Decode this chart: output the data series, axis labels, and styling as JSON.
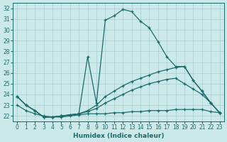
{
  "xlabel": "Humidex (Indice chaleur)",
  "bg_color": "#cce9e9",
  "line_color": "#1a6b6b",
  "grid_color": "#a8cccc",
  "xlim": [
    -0.5,
    23.5
  ],
  "ylim": [
    21.5,
    32.5
  ],
  "xticks": [
    0,
    1,
    2,
    3,
    4,
    5,
    6,
    7,
    8,
    9,
    10,
    11,
    12,
    13,
    14,
    15,
    16,
    17,
    18,
    19,
    20,
    21,
    22,
    23
  ],
  "yticks": [
    22,
    23,
    24,
    25,
    26,
    27,
    28,
    29,
    30,
    31,
    32
  ],
  "series": [
    {
      "x": [
        0,
        1,
        2,
        3,
        4,
        5,
        6,
        7,
        8,
        9,
        10,
        11,
        12,
        13,
        14,
        15,
        16,
        17,
        18,
        19,
        20,
        21,
        22,
        23
      ],
      "y": [
        23.8,
        23.0,
        22.5,
        21.9,
        21.9,
        22.0,
        22.1,
        22.2,
        27.5,
        23.2,
        30.9,
        31.3,
        31.9,
        31.7,
        30.8,
        30.2,
        28.9,
        27.5,
        26.6,
        26.6,
        25.3,
        24.3,
        23.2,
        22.3
      ]
    },
    {
      "x": [
        0,
        1,
        2,
        3,
        4,
        5,
        6,
        7,
        8,
        9,
        10,
        11,
        12,
        13,
        14,
        15,
        16,
        17,
        18,
        19,
        20,
        21,
        22,
        23
      ],
      "y": [
        23.0,
        22.5,
        22.2,
        22.0,
        21.9,
        21.9,
        22.0,
        22.1,
        22.2,
        22.2,
        22.2,
        22.3,
        22.3,
        22.4,
        22.4,
        22.5,
        22.5,
        22.5,
        22.6,
        22.6,
        22.6,
        22.6,
        22.4,
        22.3
      ]
    },
    {
      "x": [
        0,
        1,
        2,
        3,
        4,
        5,
        6,
        7,
        8,
        9,
        10,
        11,
        12,
        13,
        14,
        15,
        16,
        17,
        18,
        19,
        20,
        21,
        22,
        23
      ],
      "y": [
        23.8,
        23.0,
        22.5,
        21.9,
        21.9,
        22.0,
        22.1,
        22.2,
        22.5,
        23.0,
        23.8,
        24.3,
        24.8,
        25.2,
        25.5,
        25.8,
        26.1,
        26.3,
        26.5,
        26.6,
        25.3,
        24.3,
        23.2,
        22.3
      ]
    },
    {
      "x": [
        0,
        1,
        2,
        3,
        4,
        5,
        6,
        7,
        8,
        9,
        10,
        11,
        12,
        13,
        14,
        15,
        16,
        17,
        18,
        19,
        20,
        21,
        22,
        23
      ],
      "y": [
        23.8,
        23.0,
        22.5,
        21.9,
        21.9,
        22.0,
        22.1,
        22.2,
        22.4,
        22.7,
        23.2,
        23.6,
        24.0,
        24.4,
        24.7,
        25.0,
        25.2,
        25.4,
        25.5,
        25.0,
        24.5,
        24.0,
        23.2,
        22.3
      ]
    }
  ]
}
